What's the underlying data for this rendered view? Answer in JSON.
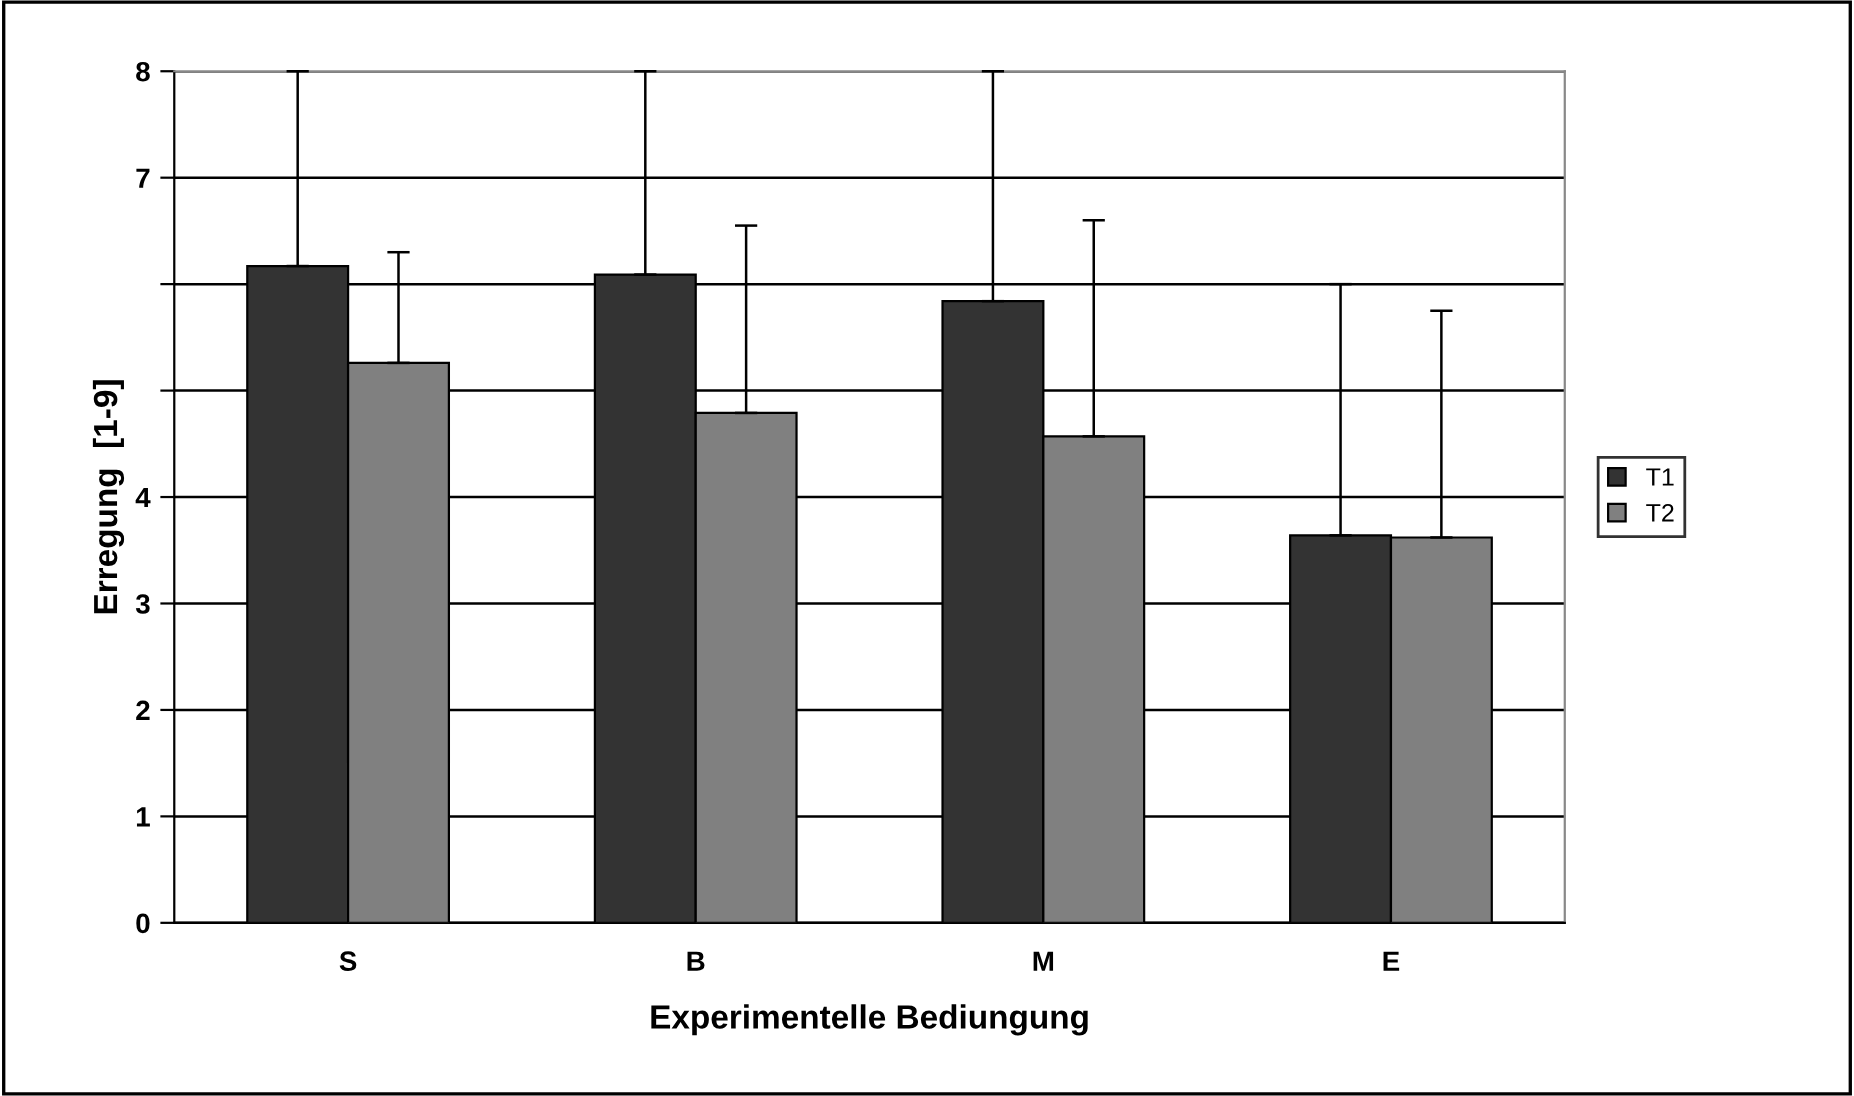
{
  "chart_data": {
    "type": "bar",
    "xlabel": "Experimentelle Bediungung",
    "ylabel": "Erregung  [1-9]",
    "categories": [
      "S",
      "B",
      "M",
      "E"
    ],
    "series": [
      {
        "name": "T1",
        "color": "#333333",
        "values": [
          6.17,
          6.09,
          5.84,
          3.64
        ],
        "errors": [
          [
            6.17,
            8.0
          ],
          [
            6.09,
            8.0
          ],
          [
            5.84,
            8.0
          ],
          [
            3.64,
            6.0
          ]
        ]
      },
      {
        "name": "T2",
        "color": "#808080",
        "values": [
          5.26,
          4.79,
          4.57,
          3.62
        ],
        "errors": [
          [
            5.26,
            6.3
          ],
          [
            4.79,
            6.55
          ],
          [
            4.57,
            6.6
          ],
          [
            3.62,
            5.75
          ]
        ]
      }
    ],
    "ylim": [
      0,
      8
    ],
    "yticks": [
      0,
      1,
      2,
      3,
      4,
      {
        "value": 5,
        "label": null
      },
      {
        "value": 6,
        "label": null
      },
      7,
      8
    ],
    "grid": "y",
    "legend": "right"
  }
}
